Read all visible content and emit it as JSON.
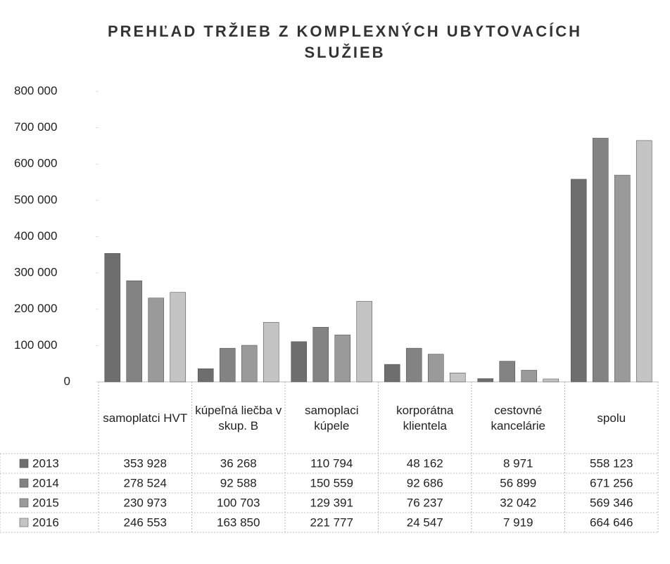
{
  "chart_data": {
    "type": "bar",
    "title": "PREHĽAD TRŽIEB Z KOMPLEXNÝCH UBYTOVACÍCH SLUŽIEB",
    "categories": [
      "samoplatci HVT",
      "kúpeľná liečba v skup. B",
      "samoplaci kúpele",
      "korporátna klientela",
      "cestovné kancelárie",
      "spolu"
    ],
    "series": [
      {
        "name": "2013",
        "color": "#6e6e6e",
        "values": [
          353928,
          36268,
          110794,
          48162,
          8971,
          558123
        ],
        "value_labels": [
          "353 928",
          "36 268",
          "110 794",
          "48 162",
          "8 971",
          "558 123"
        ]
      },
      {
        "name": "2014",
        "color": "#838383",
        "values": [
          278524,
          92588,
          150559,
          92686,
          56899,
          671256
        ],
        "value_labels": [
          "278 524",
          "92 588",
          "150 559",
          "92 686",
          "56 899",
          "671 256"
        ]
      },
      {
        "name": "2015",
        "color": "#9a9a9a",
        "values": [
          230973,
          100703,
          129391,
          76237,
          32042,
          569346
        ],
        "value_labels": [
          "230 973",
          "100 703",
          "129 391",
          "76 237",
          "32 042",
          "569 346"
        ]
      },
      {
        "name": "2016",
        "color": "#c4c4c4",
        "values": [
          246553,
          163850,
          221777,
          24547,
          7919,
          664646
        ],
        "value_labels": [
          "246 553",
          "163 850",
          "221 777",
          "24 547",
          "7 919",
          "664 646"
        ]
      }
    ],
    "ylim": [
      0,
      800000
    ],
    "yticks": [
      0,
      {
        "value": 100000,
        "label": "100 000"
      },
      {
        "value": 200000,
        "label": "200 000"
      },
      {
        "value": 300000,
        "label": "300 000"
      },
      {
        "value": 400000,
        "label": "400 000"
      },
      {
        "value": 500000,
        "label": "500 000"
      },
      {
        "value": 600000,
        "label": "600 000"
      },
      {
        "value": 700000,
        "label": "700 000"
      },
      {
        "value": 800000,
        "label": "800 000"
      }
    ],
    "grid": false
  }
}
